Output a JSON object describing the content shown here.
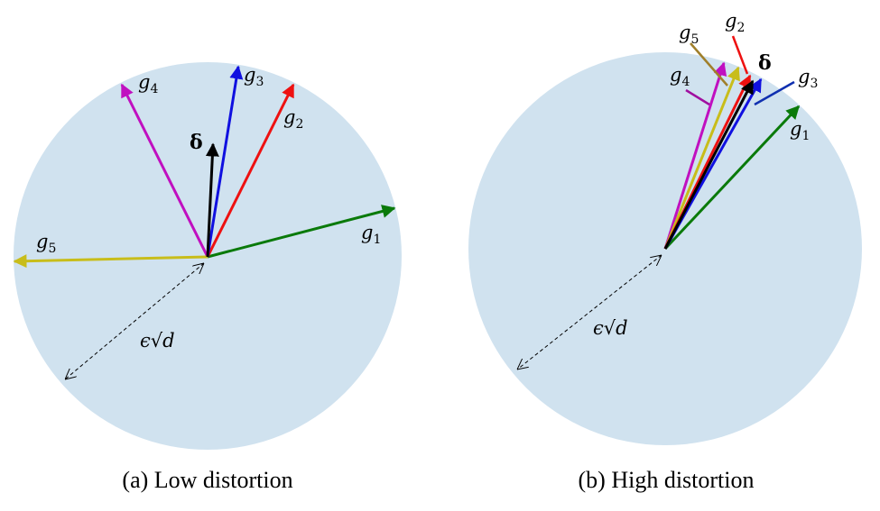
{
  "panels": [
    {
      "caption": "(a) Low distortion",
      "delta": "δ",
      "radius_label": "ϵ√d",
      "vectors": [
        {
          "name": "g",
          "sub": "1"
        },
        {
          "name": "g",
          "sub": "2"
        },
        {
          "name": "g",
          "sub": "3"
        },
        {
          "name": "g",
          "sub": "4"
        },
        {
          "name": "g",
          "sub": "5"
        }
      ]
    },
    {
      "caption": "(b) High distortion",
      "delta": "δ",
      "radius_label": "ϵ√d",
      "vectors": [
        {
          "name": "g",
          "sub": "1"
        },
        {
          "name": "g",
          "sub": "2"
        },
        {
          "name": "g",
          "sub": "3"
        },
        {
          "name": "g",
          "sub": "4"
        },
        {
          "name": "g",
          "sub": "5"
        }
      ]
    }
  ]
}
